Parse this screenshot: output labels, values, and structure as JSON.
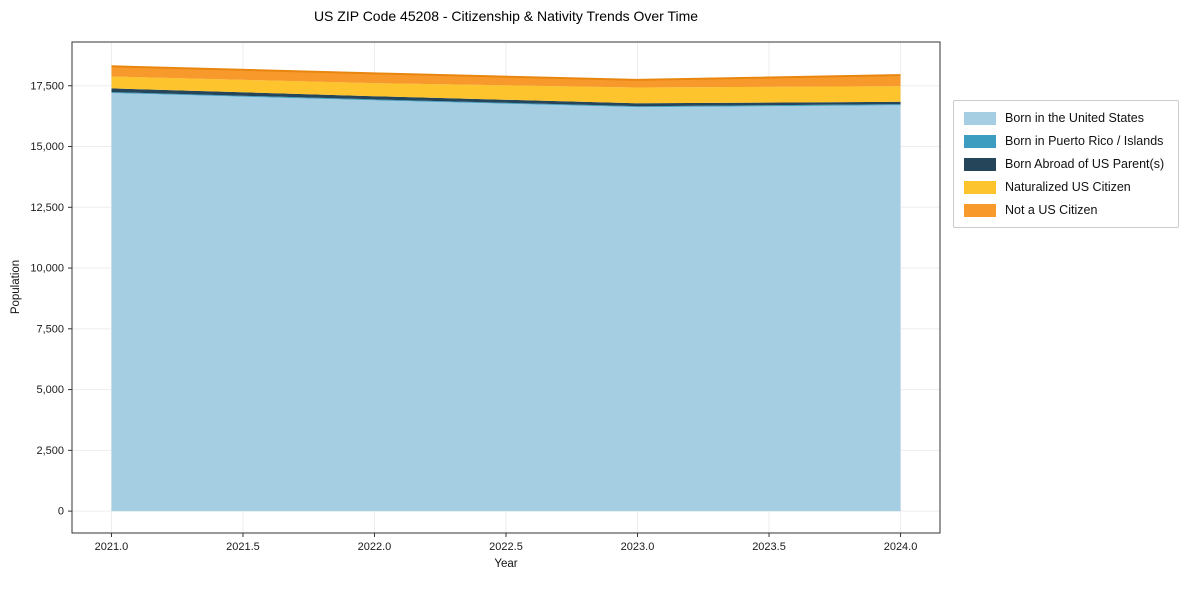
{
  "title": "US ZIP Code 45208 - Citizenship & Nativity Trends Over Time",
  "chart_data": {
    "type": "area",
    "stacked": true,
    "title": "US ZIP Code 45208 - Citizenship & Nativity Trends Over Time",
    "xlabel": "Year",
    "ylabel": "Population",
    "x": [
      2021,
      2022,
      2023,
      2024
    ],
    "series": [
      {
        "name": "Born in the United States",
        "color": "#a5cee3",
        "values": [
          17200,
          16900,
          16620,
          16700
        ]
      },
      {
        "name": "Born in Puerto Rico / Islands",
        "color": "#3c9dc1",
        "values": [
          40,
          40,
          40,
          40
        ]
      },
      {
        "name": "Born Abroad of US Parent(s)",
        "color": "#25465a",
        "values": [
          150,
          130,
          120,
          100
        ]
      },
      {
        "name": "Naturalized US Citizen",
        "color": "#fdc42d",
        "values": [
          490,
          540,
          650,
          640
        ]
      },
      {
        "name": "Not a US Citizen",
        "color": "#f8992c",
        "values": [
          420,
          400,
          310,
          460
        ]
      }
    ],
    "top_edge_color": "#e8860f",
    "xlim": [
      2020.85,
      2024.15
    ],
    "ylim": [
      -900,
      19300
    ],
    "xticks": [
      {
        "v": 2021.0,
        "label": "2021.0"
      },
      {
        "v": 2021.5,
        "label": "2021.5"
      },
      {
        "v": 2022.0,
        "label": "2022.0"
      },
      {
        "v": 2022.5,
        "label": "2022.5"
      },
      {
        "v": 2023.0,
        "label": "2023.0"
      },
      {
        "v": 2023.5,
        "label": "2023.5"
      },
      {
        "v": 2024.0,
        "label": "2024.0"
      }
    ],
    "yticks": [
      {
        "v": 0,
        "label": "0"
      },
      {
        "v": 2500,
        "label": "2,500"
      },
      {
        "v": 5000,
        "label": "5,000"
      },
      {
        "v": 7500,
        "label": "7,500"
      },
      {
        "v": 10000,
        "label": "10,000"
      },
      {
        "v": 12500,
        "label": "12,500"
      },
      {
        "v": 15000,
        "label": "15,000"
      },
      {
        "v": 17500,
        "label": "17,500"
      }
    ],
    "grid": true,
    "legend_position": "right"
  }
}
